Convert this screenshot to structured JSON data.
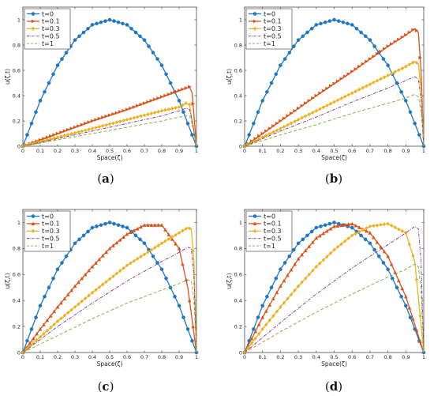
{
  "captions": [
    {
      "open": "(",
      "letter": "a",
      "close": ")"
    },
    {
      "open": "(",
      "letter": "b",
      "close": ")"
    },
    {
      "open": "(",
      "letter": "c",
      "close": ")"
    },
    {
      "open": "(",
      "letter": "d",
      "close": ")"
    }
  ],
  "colors": {
    "t0": "#1f77c4",
    "t01": "#d95319",
    "t03": "#edb120",
    "t05": "#7e2f8e",
    "t1": "#77ac30"
  },
  "chart_data": [
    {
      "type": "line",
      "panel": "a",
      "xlabel": "Space(ζ)",
      "ylabel": "u(ζ,t)",
      "xlim": [
        0,
        1
      ],
      "ylim": [
        0,
        1.1
      ],
      "xticks": [
        0,
        0.1,
        0.2,
        0.3,
        0.4,
        0.5,
        0.6,
        0.7,
        0.8,
        0.9,
        1
      ],
      "yticks": [
        0,
        0.2,
        0.4,
        0.6,
        0.8,
        1
      ],
      "xtick_labels": [
        "0",
        "0.1",
        "0.2",
        "0.3",
        "0.4",
        "0.5",
        "0.6",
        "0.7",
        "0.8",
        "0.9",
        "1"
      ],
      "ytick_labels": [
        "0",
        "0.2",
        "0.4",
        "0.6",
        "0.8",
        "1"
      ],
      "legend_position": "top-left",
      "series": [
        {
          "name": "t=0",
          "marker": "circle",
          "line": "solid",
          "x": [
            0,
            0.1,
            0.2,
            0.3,
            0.4,
            0.5,
            0.6,
            0.7,
            0.8,
            0.9,
            1
          ],
          "y": [
            0,
            0.36,
            0.64,
            0.84,
            0.96,
            1.0,
            0.96,
            0.84,
            0.64,
            0.36,
            0
          ]
        },
        {
          "name": "t=0.1",
          "marker": "triangle-right",
          "line": "solid",
          "x": [
            0,
            0.2,
            0.4,
            0.6,
            0.8,
            0.9,
            0.96,
            0.975,
            1
          ],
          "y": [
            0,
            0.1,
            0.2,
            0.29,
            0.39,
            0.44,
            0.47,
            0.42,
            0
          ]
        },
        {
          "name": "t=0.3",
          "marker": "diamond",
          "line": "solid",
          "x": [
            0,
            0.2,
            0.4,
            0.6,
            0.8,
            0.9,
            0.94,
            0.96,
            0.975,
            1
          ],
          "y": [
            0,
            0.07,
            0.14,
            0.21,
            0.28,
            0.31,
            0.34,
            0.33,
            0.2,
            0
          ]
        },
        {
          "name": "t=0.5",
          "marker": "none",
          "line": "dashdot",
          "x": [
            0,
            0.2,
            0.4,
            0.6,
            0.8,
            0.9,
            0.94,
            0.96,
            0.975,
            1
          ],
          "y": [
            0,
            0.06,
            0.12,
            0.18,
            0.24,
            0.28,
            0.3,
            0.29,
            0.2,
            0
          ]
        },
        {
          "name": "t=1",
          "marker": "none",
          "line": "dashed",
          "x": [
            0,
            0.2,
            0.4,
            0.6,
            0.8,
            0.9,
            0.94,
            0.96,
            0.975,
            1
          ],
          "y": [
            0,
            0.05,
            0.1,
            0.15,
            0.2,
            0.23,
            0.24,
            0.24,
            0.18,
            0
          ]
        }
      ]
    },
    {
      "type": "line",
      "panel": "b",
      "xlabel": "Space(ζ)",
      "ylabel": "u(ζ,t)",
      "xlim": [
        0,
        1
      ],
      "ylim": [
        0,
        1.1
      ],
      "xticks": [
        0,
        0.1,
        0.2,
        0.3,
        0.4,
        0.5,
        0.6,
        0.7,
        0.8,
        0.9,
        1
      ],
      "yticks": [
        0,
        0.2,
        0.4,
        0.6,
        0.8,
        1
      ],
      "xtick_labels": [
        "0",
        "0.1",
        "0.2",
        "0.3",
        "0.4",
        "0.5",
        "0.6",
        "0.7",
        "0.8",
        "0.9",
        "1"
      ],
      "ytick_labels": [
        "0",
        "0.2",
        "0.4",
        "0.6",
        "0.8",
        "1"
      ],
      "legend_position": "top-left",
      "series": [
        {
          "name": "t=0",
          "marker": "circle",
          "line": "solid",
          "x": [
            0,
            0.1,
            0.2,
            0.3,
            0.4,
            0.5,
            0.6,
            0.7,
            0.8,
            0.9,
            1
          ],
          "y": [
            0,
            0.36,
            0.64,
            0.84,
            0.96,
            1.0,
            0.96,
            0.84,
            0.64,
            0.36,
            0
          ]
        },
        {
          "name": "t=0.1",
          "marker": "triangle-right",
          "line": "solid",
          "x": [
            0,
            0.2,
            0.4,
            0.6,
            0.8,
            0.9,
            0.95,
            0.97,
            0.985,
            1
          ],
          "y": [
            0,
            0.2,
            0.4,
            0.59,
            0.79,
            0.88,
            0.93,
            0.9,
            0.6,
            0
          ]
        },
        {
          "name": "t=0.3",
          "marker": "diamond",
          "line": "solid",
          "x": [
            0,
            0.2,
            0.4,
            0.6,
            0.8,
            0.9,
            0.95,
            0.97,
            0.985,
            1
          ],
          "y": [
            0,
            0.14,
            0.28,
            0.42,
            0.56,
            0.63,
            0.67,
            0.65,
            0.45,
            0
          ]
        },
        {
          "name": "t=0.5",
          "marker": "none",
          "line": "dashdot",
          "x": [
            0,
            0.2,
            0.4,
            0.6,
            0.8,
            0.9,
            0.95,
            0.97,
            0.985,
            1
          ],
          "y": [
            0,
            0.12,
            0.23,
            0.35,
            0.46,
            0.52,
            0.55,
            0.53,
            0.38,
            0
          ]
        },
        {
          "name": "t=1",
          "marker": "none",
          "line": "dashed",
          "x": [
            0,
            0.2,
            0.4,
            0.6,
            0.8,
            0.9,
            0.95,
            0.97,
            0.985,
            1
          ],
          "y": [
            0,
            0.09,
            0.17,
            0.26,
            0.34,
            0.38,
            0.41,
            0.39,
            0.28,
            0
          ]
        }
      ]
    },
    {
      "type": "line",
      "panel": "c",
      "xlabel": "Space(ζ)",
      "ylabel": "u(ζ,t)",
      "xlim": [
        0,
        1
      ],
      "ylim": [
        0,
        1.1
      ],
      "xticks": [
        0,
        0.1,
        0.2,
        0.3,
        0.4,
        0.5,
        0.6,
        0.7,
        0.8,
        0.9,
        1
      ],
      "yticks": [
        0,
        0.2,
        0.4,
        0.6,
        0.8,
        1
      ],
      "xtick_labels": [
        "0",
        "0.1",
        "0.2",
        "0.3",
        "0.4",
        "0.5",
        "0.6",
        "0.7",
        "0.8",
        "0.9",
        "1"
      ],
      "ytick_labels": [
        "0",
        "0.2",
        "0.4",
        "0.6",
        "0.8",
        "1"
      ],
      "legend_position": "top-left",
      "series": [
        {
          "name": "t=0",
          "marker": "circle",
          "line": "solid",
          "x": [
            0,
            0.1,
            0.2,
            0.3,
            0.4,
            0.5,
            0.6,
            0.7,
            0.8,
            0.9,
            1
          ],
          "y": [
            0,
            0.36,
            0.64,
            0.84,
            0.96,
            1.0,
            0.96,
            0.84,
            0.64,
            0.36,
            0
          ]
        },
        {
          "name": "t=0.1",
          "marker": "triangle-up",
          "line": "solid",
          "x": [
            0,
            0.1,
            0.2,
            0.3,
            0.4,
            0.5,
            0.6,
            0.7,
            0.8,
            0.9,
            0.95,
            1
          ],
          "y": [
            0,
            0.18,
            0.35,
            0.51,
            0.66,
            0.8,
            0.91,
            0.98,
            0.98,
            0.8,
            0.5,
            0
          ]
        },
        {
          "name": "t=0.3",
          "marker": "diamond",
          "line": "solid",
          "x": [
            0,
            0.2,
            0.4,
            0.6,
            0.8,
            0.9,
            0.95,
            0.97,
            0.985,
            1
          ],
          "y": [
            0,
            0.24,
            0.46,
            0.67,
            0.84,
            0.92,
            0.96,
            0.95,
            0.7,
            0
          ]
        },
        {
          "name": "t=0.5",
          "marker": "none",
          "line": "dashdot",
          "x": [
            0,
            0.2,
            0.4,
            0.6,
            0.8,
            0.9,
            0.95,
            0.97,
            0.985,
            1
          ],
          "y": [
            0,
            0.2,
            0.38,
            0.55,
            0.7,
            0.77,
            0.81,
            0.8,
            0.6,
            0
          ]
        },
        {
          "name": "t=1",
          "marker": "none",
          "line": "dashed",
          "x": [
            0,
            0.2,
            0.4,
            0.6,
            0.8,
            0.9,
            0.95,
            0.97,
            0.985,
            1
          ],
          "y": [
            0,
            0.13,
            0.26,
            0.38,
            0.48,
            0.53,
            0.56,
            0.55,
            0.42,
            0
          ]
        }
      ]
    },
    {
      "type": "line",
      "panel": "d",
      "xlabel": "Space(ζ)",
      "ylabel": "u(ζ,t)",
      "xlim": [
        0,
        1
      ],
      "ylim": [
        0,
        1.1
      ],
      "xticks": [
        0,
        0.1,
        0.2,
        0.3,
        0.4,
        0.5,
        0.6,
        0.7,
        0.8,
        0.9,
        1
      ],
      "yticks": [
        0,
        0.2,
        0.4,
        0.6,
        0.8,
        1
      ],
      "xtick_labels": [
        "0",
        "0.1",
        "0.2",
        "0.3",
        "0.4",
        "0.5",
        "0.6",
        "0.7",
        "0.8",
        "0.9",
        "1"
      ],
      "ytick_labels": [
        "0",
        "0.2",
        "0.4",
        "0.6",
        "0.8",
        "1"
      ],
      "legend_position": "top-left",
      "series": [
        {
          "name": "t=0",
          "marker": "circle",
          "line": "solid",
          "x": [
            0,
            0.1,
            0.2,
            0.3,
            0.4,
            0.5,
            0.6,
            0.7,
            0.8,
            0.9,
            1
          ],
          "y": [
            0,
            0.36,
            0.64,
            0.84,
            0.96,
            1.0,
            0.96,
            0.84,
            0.64,
            0.36,
            0
          ]
        },
        {
          "name": "t=0.1",
          "marker": "triangle-up",
          "line": "solid",
          "x": [
            0,
            0.1,
            0.2,
            0.3,
            0.4,
            0.5,
            0.6,
            0.7,
            0.8,
            0.9,
            1
          ],
          "y": [
            0,
            0.27,
            0.51,
            0.72,
            0.88,
            0.97,
            0.99,
            0.92,
            0.74,
            0.43,
            0
          ]
        },
        {
          "name": "t=0.3",
          "marker": "diamond",
          "line": "solid",
          "x": [
            0,
            0.1,
            0.2,
            0.3,
            0.4,
            0.5,
            0.6,
            0.7,
            0.8,
            0.9,
            0.95,
            1
          ],
          "y": [
            0,
            0.18,
            0.35,
            0.51,
            0.66,
            0.79,
            0.9,
            0.97,
            0.99,
            0.92,
            0.7,
            0
          ]
        },
        {
          "name": "t=0.5",
          "marker": "none",
          "line": "dashdot",
          "x": [
            0,
            0.2,
            0.4,
            0.6,
            0.8,
            0.9,
            0.95,
            0.97,
            0.985,
            1
          ],
          "y": [
            0,
            0.23,
            0.45,
            0.65,
            0.83,
            0.92,
            0.97,
            0.95,
            0.7,
            0
          ]
        },
        {
          "name": "t=1",
          "marker": "none",
          "line": "dashed",
          "x": [
            0,
            0.2,
            0.4,
            0.6,
            0.8,
            0.9,
            0.95,
            0.97,
            0.985,
            1
          ],
          "y": [
            0,
            0.16,
            0.31,
            0.45,
            0.58,
            0.64,
            0.68,
            0.66,
            0.5,
            0
          ]
        }
      ]
    }
  ]
}
